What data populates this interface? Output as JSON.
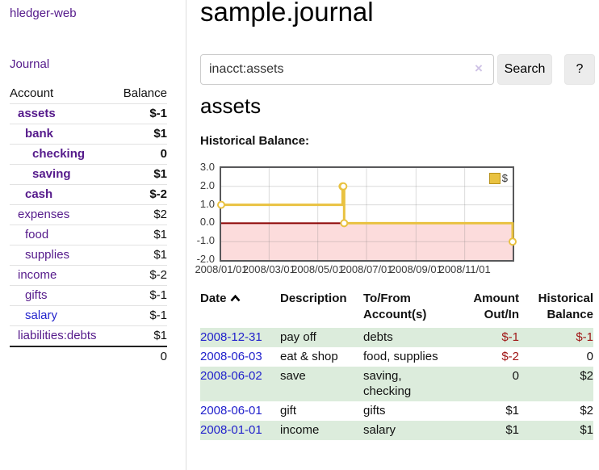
{
  "sidebar": {
    "brand": "hledger-web",
    "nav": {
      "journal": "Journal"
    },
    "accounts": {
      "header_account": "Account",
      "header_balance": "Balance",
      "rows": [
        {
          "label": "assets",
          "balance": "$-1",
          "depth": 1,
          "bold": true,
          "balance_style": "neg",
          "link_style": "visited"
        },
        {
          "label": "bank",
          "balance": "$1",
          "depth": 2,
          "bold": true,
          "balance_style": "normal",
          "link_style": "visited"
        },
        {
          "label": "checking",
          "balance": "0",
          "depth": 3,
          "bold": true,
          "balance_style": "normal",
          "link_style": "visited"
        },
        {
          "label": "saving",
          "balance": "$1",
          "depth": 3,
          "bold": true,
          "balance_style": "normal",
          "link_style": "visited"
        },
        {
          "label": "cash",
          "balance": "$-2",
          "depth": 2,
          "bold": true,
          "balance_style": "neg",
          "link_style": "visited"
        },
        {
          "label": "expenses",
          "balance": "$2",
          "depth": 1,
          "bold": false,
          "balance_style": "normal",
          "link_style": "visited"
        },
        {
          "label": "food",
          "balance": "$1",
          "depth": 2,
          "bold": false,
          "balance_style": "normal",
          "link_style": "visited"
        },
        {
          "label": "supplies",
          "balance": "$1",
          "depth": 2,
          "bold": false,
          "balance_style": "normal",
          "link_style": "visited"
        },
        {
          "label": "income",
          "balance": "$-2",
          "depth": 1,
          "bold": false,
          "balance_style": "soft-neg",
          "link_style": "visited"
        },
        {
          "label": "gifts",
          "balance": "$-1",
          "depth": 2,
          "bold": false,
          "balance_style": "soft-neg",
          "link_style": "visited"
        },
        {
          "label": "salary",
          "balance": "$-1",
          "depth": 2,
          "bold": false,
          "balance_style": "soft-neg",
          "link_style": "unvisited"
        },
        {
          "label": "liabilities:debts",
          "balance": "$1",
          "depth": 1,
          "bold": false,
          "balance_style": "normal",
          "link_style": "visited"
        }
      ],
      "total": "0"
    }
  },
  "main": {
    "title": "sample.journal",
    "search": {
      "value": "inacct:assets",
      "clear_icon": "×",
      "search_button": "Search",
      "help_button": "?"
    },
    "account_heading": "assets",
    "section_label": "Historical Balance:"
  },
  "chart_data": {
    "type": "line",
    "step": true,
    "title": "Historical Balance",
    "series": [
      {
        "name": "$",
        "points": [
          {
            "date": "2008-01-01",
            "day": 0,
            "value": 1
          },
          {
            "date": "2008-06-01",
            "day": 152,
            "value": 2
          },
          {
            "date": "2008-06-02",
            "day": 153,
            "value": 2
          },
          {
            "date": "2008-06-03",
            "day": 154,
            "value": 0
          },
          {
            "date": "2008-12-31",
            "day": 365,
            "value": -1
          }
        ]
      }
    ],
    "xticks": [
      {
        "label": "2008/01/01",
        "day": 0
      },
      {
        "label": "2008/03/01",
        "day": 60
      },
      {
        "label": "2008/05/01",
        "day": 121
      },
      {
        "label": "2008/07/01",
        "day": 182
      },
      {
        "label": "2008/09/01",
        "day": 244
      },
      {
        "label": "2008/11/01",
        "day": 305
      }
    ],
    "yticks": [
      {
        "label": "3.0",
        "value": 3
      },
      {
        "label": "2.0",
        "value": 2
      },
      {
        "label": "1.0",
        "value": 1
      },
      {
        "label": "0.0",
        "value": 0
      },
      {
        "label": "-1.0",
        "value": -1
      },
      {
        "label": "-2.0",
        "value": -2
      }
    ],
    "xlim_days": [
      0,
      365
    ],
    "ylim": [
      -2,
      3
    ],
    "grid": true,
    "legend_position": "top-right",
    "line_color": "#e9c241",
    "zero_line_color": "#8b0000",
    "negative_region_color": "#fcdcdc"
  },
  "register": {
    "headers": {
      "date": "Date",
      "sort_icon": "chevron-up",
      "description": "Description",
      "accounts": "To/From Account(s)",
      "amount": "Amount Out/In",
      "balance": "Historical Balance"
    },
    "rows": [
      {
        "date": "2008-12-31",
        "description": "pay off",
        "accounts": "debts",
        "amount": "$-1",
        "balance": "$-1",
        "amount_negative": true,
        "balance_negative": true,
        "striped": true
      },
      {
        "date": "2008-06-03",
        "description": "eat & shop",
        "accounts": "food, supplies",
        "amount": "$-2",
        "balance": "0",
        "amount_negative": true,
        "balance_negative": false,
        "striped": false
      },
      {
        "date": "2008-06-02",
        "description": "save",
        "accounts": "saving,\nchecking",
        "amount": "0",
        "balance": "$2",
        "amount_negative": false,
        "balance_negative": false,
        "striped": true
      },
      {
        "date": "2008-06-01",
        "description": "gift",
        "accounts": "gifts",
        "amount": "$1",
        "balance": "$2",
        "amount_negative": false,
        "balance_negative": false,
        "striped": false
      },
      {
        "date": "2008-01-01",
        "description": "income",
        "accounts": "salary",
        "amount": "$1",
        "balance": "$1",
        "amount_negative": false,
        "balance_negative": false,
        "striped": true
      }
    ]
  },
  "colors": {
    "purple_link": "#551a8b",
    "blue_link": "#2222cc",
    "negative_strong": "#a01616",
    "negative_soft": "#c0777c",
    "stripe_green": "#dcecdc",
    "button_bg": "#ececec"
  }
}
